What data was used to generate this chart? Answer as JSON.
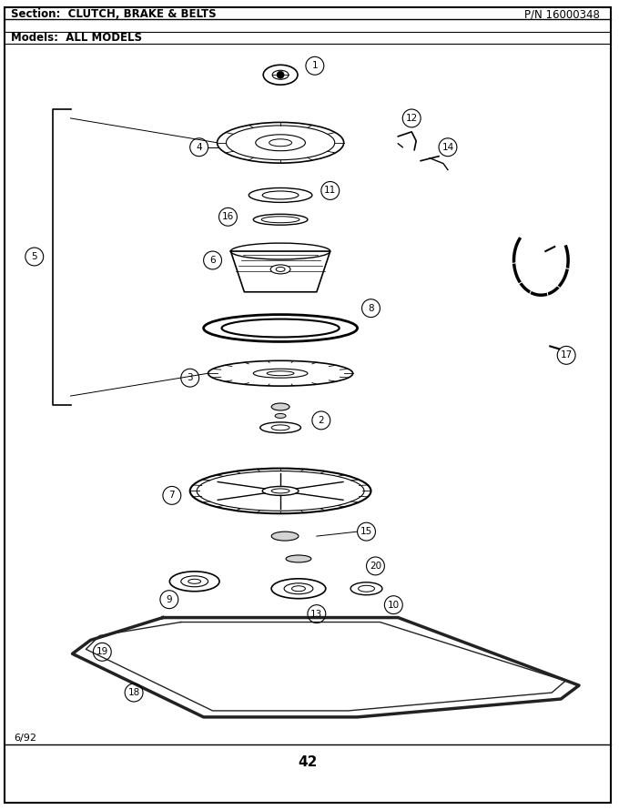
{
  "title_section": "Section:  CLUTCH, BRAKE & BELTS",
  "title_pn": "P/N 16000348",
  "title_models": "Models:  ALL MODELS",
  "page_number": "42",
  "date": "6/92",
  "bg_color": "#ffffff",
  "border_color": "#000000",
  "text_color": "#000000",
  "figsize": [
    6.8,
    8.9
  ],
  "dpi": 100
}
